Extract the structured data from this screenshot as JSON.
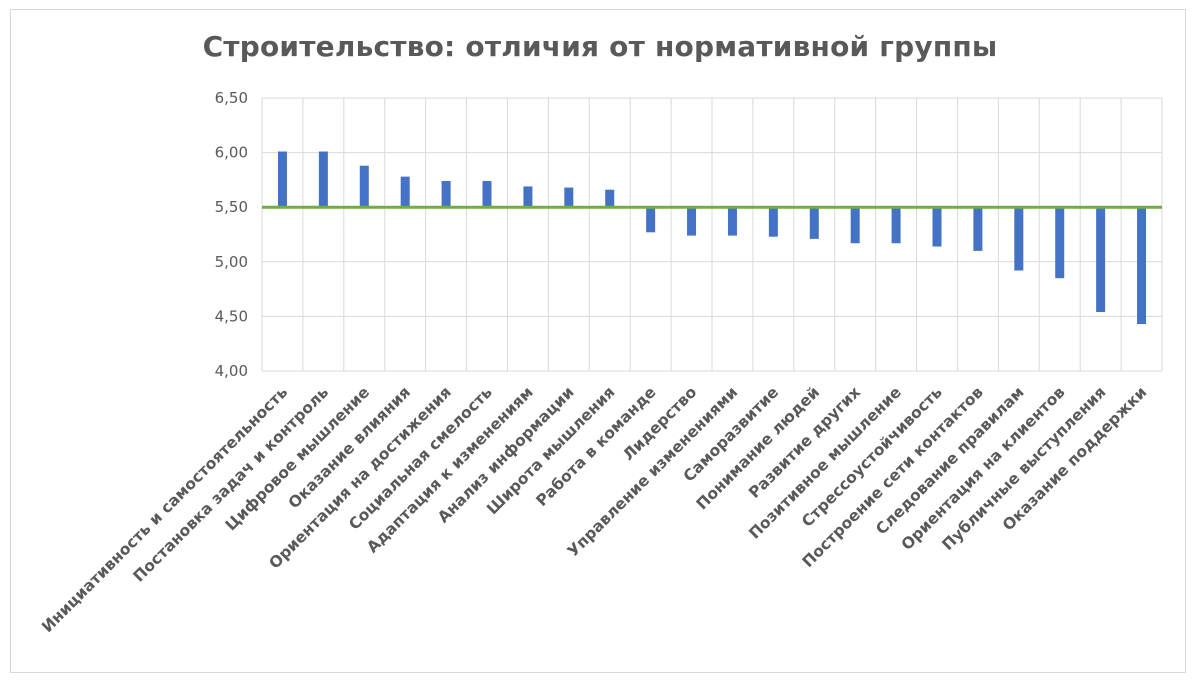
{
  "chart_data": {
    "type": "bar",
    "title": "Строительство: отличия от нормативной группы",
    "xlabel": "",
    "ylabel": "",
    "ylim": [
      4.0,
      6.5
    ],
    "yticks": [
      "4,00",
      "4,50",
      "5,00",
      "5,50",
      "6,00",
      "6,50"
    ],
    "baseline": 5.5,
    "grid": true,
    "legend": "none",
    "colors": {
      "bar": "#4472c4",
      "baseline": "#70ad47",
      "grid": "#d9d9d9",
      "text": "#595959"
    },
    "categories": [
      "Инициативность и самостоятельность",
      "Постановка задач и контроль",
      "Цифровое мышление",
      "Оказание влияния",
      "Ориентация на достижения",
      "Социальная смелость",
      "Адаптация к изменениям",
      "Анализ информации",
      "Широта мышления",
      "Работа в команде",
      "Лидерство",
      "Управление изменениями",
      "Саморазвитие",
      "Понимание людей",
      "Развитие других",
      "Позитивное мышление",
      "Стрессоустойчивость",
      "Построение сети контактов",
      "Следование правилам",
      "Ориентация на клиентов",
      "Публичные выступления",
      "Оказание поддержки"
    ],
    "values": [
      6.01,
      6.01,
      5.88,
      5.78,
      5.74,
      5.74,
      5.69,
      5.68,
      5.66,
      5.27,
      5.24,
      5.24,
      5.23,
      5.21,
      5.17,
      5.17,
      5.14,
      5.1,
      4.92,
      4.85,
      4.54,
      4.43
    ]
  }
}
